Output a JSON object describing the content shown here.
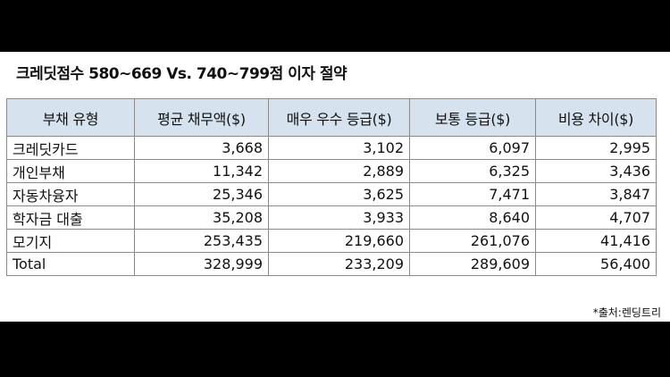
{
  "title": "크레딧점수 580~669 Vs. 740~799점 이자 절약",
  "headers": [
    "부채 유형",
    "평균 채무액($)",
    "매우 우수 등급($)",
    "보통 등급($)",
    "비용 차이($)"
  ],
  "rows": [
    [
      "크레딧카드",
      "3,668",
      "3,102",
      "6,097",
      "2,995"
    ],
    [
      "개인부채",
      "11,342",
      "2,889",
      "6,325",
      "3,436"
    ],
    [
      "자동차융자",
      "25,346",
      "3,625",
      "7,471",
      "3,847"
    ],
    [
      "학자금 대출",
      "35,208",
      "3,933",
      "8,640",
      "4,707"
    ],
    [
      "모기지",
      "253,435",
      "219,660",
      "261,076",
      "41,416"
    ],
    [
      "Total",
      "328,999",
      "233,209",
      "289,609",
      "56,400"
    ]
  ],
  "source": "*출처:렌딩트리",
  "colors": {
    "header_bg": "#d6e3ee",
    "border": "#8a8a8a",
    "background": "#000000"
  }
}
